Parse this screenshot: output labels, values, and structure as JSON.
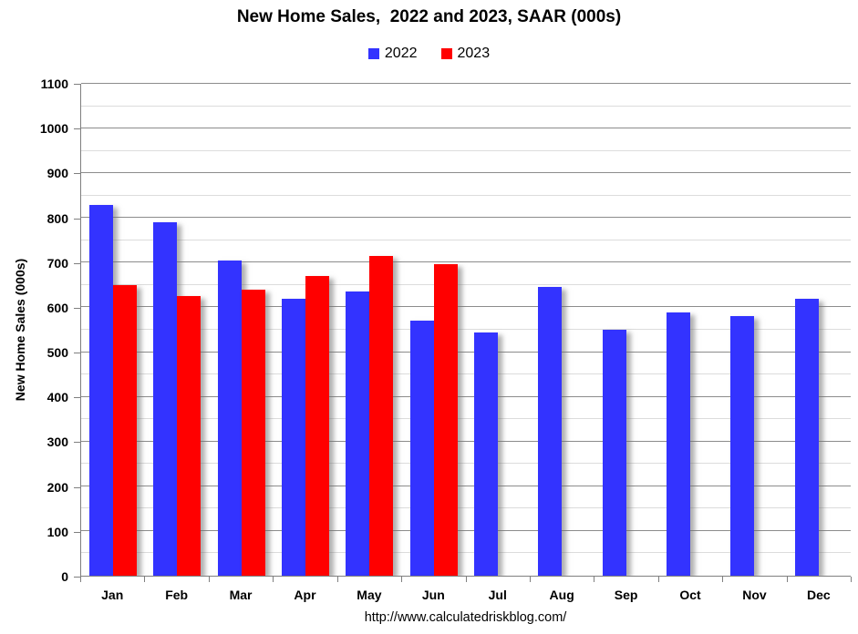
{
  "footer_url": "http://www.calculatedriskblog.com/",
  "colors": {
    "series_2022": "#3333ff",
    "series_2023": "#ff0000",
    "major_grid": "#8c8c8c",
    "minor_grid": "#dcdcdc",
    "axis": "#7f7f7f",
    "text": "#000000",
    "background": "#ffffff"
  },
  "chart_data": {
    "type": "bar",
    "title": "New Home Sales,  2022 and 2023, SAAR (000s)",
    "ylabel": "New Home Sales (000s)",
    "xlabel": "",
    "categories": [
      "Jan",
      "Feb",
      "Mar",
      "Apr",
      "May",
      "Jun",
      "Jul",
      "Aug",
      "Sep",
      "Oct",
      "Nov",
      "Dec"
    ],
    "series": [
      {
        "name": "2022",
        "color": "#3333ff",
        "values": [
          830,
          790,
          705,
          620,
          635,
          570,
          543,
          645,
          550,
          588,
          580,
          620
        ]
      },
      {
        "name": "2023",
        "color": "#ff0000",
        "values": [
          650,
          625,
          640,
          670,
          715,
          697,
          null,
          null,
          null,
          null,
          null,
          null
        ]
      }
    ],
    "ylim": [
      0,
      1100
    ],
    "ytick_step": 100,
    "minor_tick_step": 50,
    "grid": true,
    "legend_position": "top-center"
  }
}
